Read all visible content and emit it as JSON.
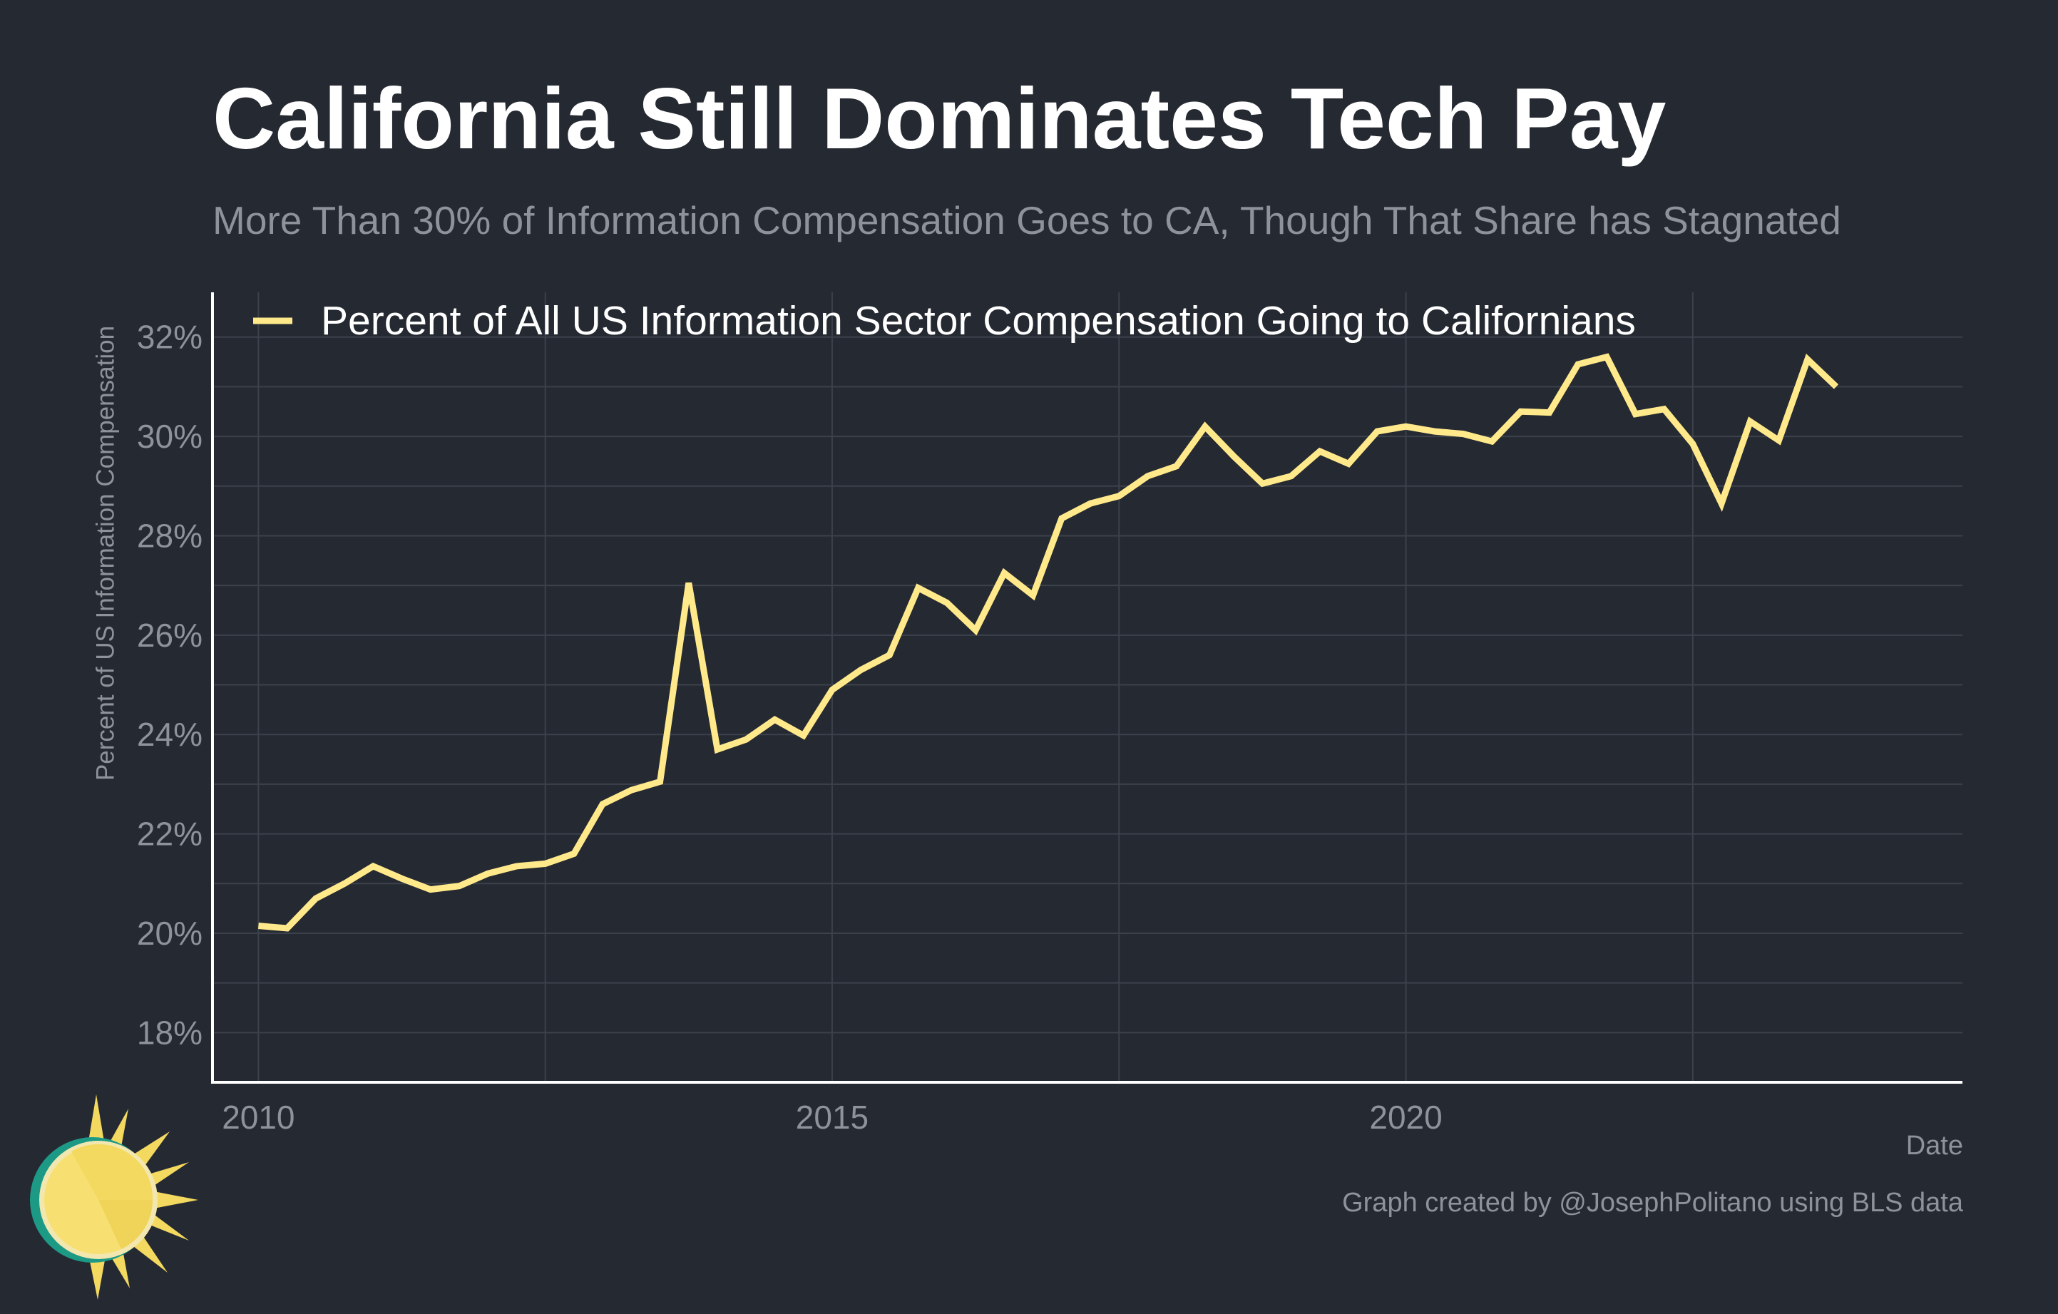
{
  "header": {
    "title": "California Still Dominates Tech Pay",
    "subtitle": "More Than 30% of Information Compensation Goes to CA, Though That Share has Stagnated"
  },
  "footer": {
    "credit": "Graph created by @JosephPolitano using BLS data"
  },
  "colors": {
    "background": "#252932",
    "line": "#ffe98a",
    "grid": "#3c414b",
    "axis": "#ffffff",
    "muted_text": "#8d929b"
  },
  "icons": {
    "logo": "sun-icon"
  },
  "chart_data": {
    "type": "line",
    "title": "California Still Dominates Tech Pay",
    "subtitle": "More Than 30% of Information Compensation Goes to CA, Though That Share has Stagnated",
    "xlabel": "Date",
    "ylabel": "Percent of US Information Compensation",
    "xlim": [
      2009.6,
      2024.85
    ],
    "ylim": [
      17,
      32.9
    ],
    "x_ticks": [
      2010,
      2015,
      2020
    ],
    "x_tick_labels": [
      "2010",
      "2015",
      "2020"
    ],
    "y_ticks": [
      18,
      20,
      22,
      24,
      26,
      28,
      30,
      32
    ],
    "y_tick_labels": [
      "18%",
      "20%",
      "22%",
      "24%",
      "26%",
      "28%",
      "30%",
      "32%"
    ],
    "grid": true,
    "legend_position": "top-left",
    "series": [
      {
        "name": "Percent of All US Information Sector Compensation Going to Californians",
        "x": [
          2010.0,
          2010.25,
          2010.5,
          2010.75,
          2011.0,
          2011.25,
          2011.5,
          2011.75,
          2012.0,
          2012.25,
          2012.5,
          2012.75,
          2013.0,
          2013.25,
          2013.5,
          2013.75,
          2014.0,
          2014.25,
          2014.5,
          2014.75,
          2015.0,
          2015.25,
          2015.5,
          2015.75,
          2016.0,
          2016.25,
          2016.5,
          2016.75,
          2017.0,
          2017.25,
          2017.5,
          2017.75,
          2018.0,
          2018.25,
          2018.5,
          2018.75,
          2019.0,
          2019.25,
          2019.5,
          2019.75,
          2020.0,
          2020.25,
          2020.5,
          2020.75,
          2021.0,
          2021.25,
          2021.5,
          2021.75,
          2022.0,
          2022.25,
          2022.5,
          2022.75,
          2023.0,
          2023.25,
          2023.5,
          2023.75
        ],
        "values": [
          20.15,
          20.1,
          20.7,
          21.0,
          21.35,
          21.1,
          20.88,
          20.95,
          21.2,
          21.35,
          21.4,
          21.6,
          22.6,
          22.88,
          23.05,
          27.05,
          23.7,
          23.9,
          24.3,
          23.98,
          24.9,
          25.3,
          25.6,
          26.95,
          26.65,
          26.1,
          27.25,
          26.8,
          28.35,
          28.65,
          28.8,
          29.2,
          29.4,
          30.2,
          29.6,
          29.05,
          29.2,
          29.7,
          29.45,
          30.1,
          30.2,
          30.1,
          30.05,
          29.9,
          30.5,
          30.48,
          31.45,
          31.6,
          30.45,
          30.55,
          29.85,
          28.65,
          30.3,
          29.92,
          31.55,
          31.0
        ]
      }
    ]
  }
}
